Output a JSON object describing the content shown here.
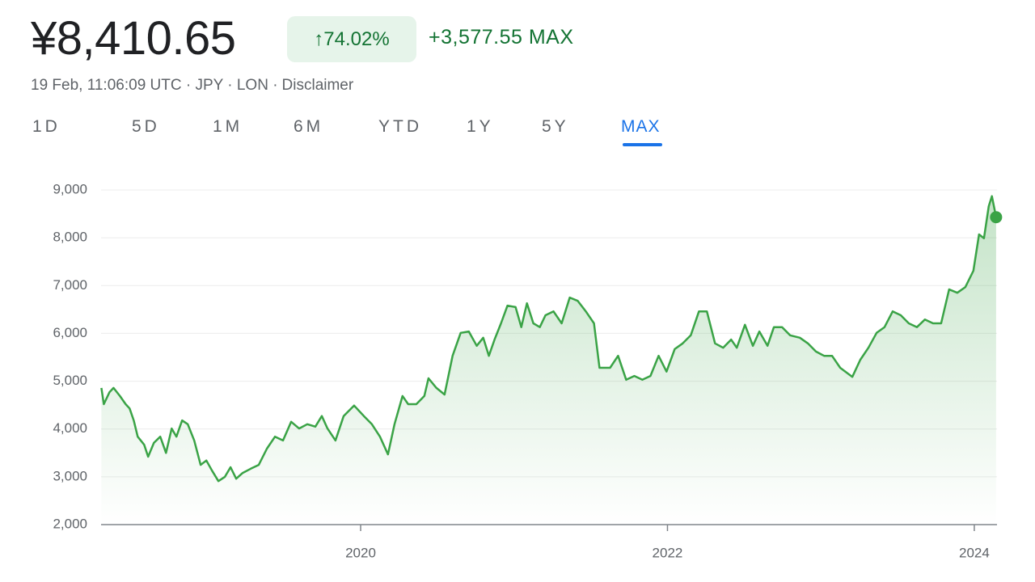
{
  "header": {
    "price": "¥8,410.65",
    "change_pct": "↑74.02%",
    "change_abs": "+3,577.55 MAX",
    "meta": "19 Feb, 11:06:09 UTC · JPY · LON ·",
    "disclaimer": "Disclaimer"
  },
  "tabs": [
    "1D",
    "5D",
    "1M",
    "6M",
    "YTD",
    "1Y",
    "5Y",
    "MAX"
  ],
  "chart_data": {
    "type": "line",
    "color": "#3aa346",
    "area": true,
    "grid": true,
    "x": [
      2018.31,
      2018.326,
      2018.363,
      2018.389,
      2018.431,
      2018.468,
      2018.494,
      2018.521,
      2018.547,
      2018.589,
      2018.615,
      2018.652,
      2018.694,
      2018.731,
      2018.768,
      2018.799,
      2018.836,
      2018.873,
      2018.915,
      2018.957,
      2018.994,
      2019.031,
      2019.073,
      2019.115,
      2019.152,
      2019.189,
      2019.231,
      2019.284,
      2019.336,
      2019.389,
      2019.442,
      2019.494,
      2019.547,
      2019.599,
      2019.652,
      2019.705,
      2019.747,
      2019.784,
      2019.836,
      2019.889,
      2019.957,
      2020.021,
      2020.073,
      2020.126,
      2020.178,
      2020.221,
      2020.273,
      2020.31,
      2020.363,
      2020.415,
      2020.442,
      2020.494,
      2020.547,
      2020.599,
      2020.652,
      2020.705,
      2020.757,
      2020.799,
      2020.836,
      2020.873,
      2020.915,
      2020.957,
      2021.01,
      2021.047,
      2021.084,
      2021.126,
      2021.168,
      2021.205,
      2021.257,
      2021.31,
      2021.363,
      2021.415,
      2021.468,
      2021.521,
      2021.557,
      2021.626,
      2021.678,
      2021.731,
      2021.784,
      2021.836,
      2021.889,
      2021.942,
      2021.994,
      2022.047,
      2022.099,
      2022.152,
      2022.205,
      2022.257,
      2022.31,
      2022.363,
      2022.415,
      2022.452,
      2022.505,
      2022.557,
      2022.599,
      2022.652,
      2022.694,
      2022.747,
      2022.799,
      2022.863,
      2022.915,
      2022.968,
      2023.021,
      2023.073,
      2023.126,
      2023.205,
      2023.257,
      2023.31,
      2023.363,
      2023.415,
      2023.468,
      2023.521,
      2023.573,
      2023.626,
      2023.678,
      2023.731,
      2023.784,
      2023.836,
      2023.889,
      2023.942,
      2023.994,
      2024.031,
      2024.063,
      2024.094,
      2024.115,
      2024.142
    ],
    "values": [
      4860,
      4520,
      4770,
      4860,
      4690,
      4520,
      4430,
      4180,
      3840,
      3670,
      3420,
      3710,
      3840,
      3500,
      4010,
      3840,
      4180,
      4100,
      3760,
      3250,
      3340,
      3130,
      2910,
      3000,
      3200,
      2960,
      3080,
      3170,
      3250,
      3590,
      3840,
      3760,
      4150,
      4010,
      4100,
      4050,
      4270,
      4010,
      3760,
      4270,
      4490,
      4270,
      4100,
      3840,
      3470,
      4100,
      4690,
      4520,
      4520,
      4690,
      5060,
      4860,
      4720,
      5530,
      6010,
      6040,
      5740,
      5910,
      5530,
      5870,
      6210,
      6580,
      6550,
      6130,
      6630,
      6210,
      6130,
      6380,
      6460,
      6210,
      6750,
      6680,
      6460,
      6210,
      5280,
      5280,
      5530,
      5030,
      5110,
      5030,
      5110,
      5530,
      5200,
      5670,
      5790,
      5960,
      6460,
      6460,
      5790,
      5700,
      5870,
      5700,
      6180,
      5740,
      6040,
      5740,
      6130,
      6130,
      5960,
      5910,
      5790,
      5620,
      5530,
      5530,
      5280,
      5090,
      5450,
      5700,
      6010,
      6130,
      6460,
      6380,
      6210,
      6130,
      6290,
      6210,
      6210,
      6920,
      6850,
      6970,
      7310,
      8070,
      7990,
      8660,
      8870,
      8430
    ],
    "xlim": [
      2018.308,
      2024.148
    ],
    "xticks": [
      2020,
      2022,
      2024
    ],
    "ylim": [
      2000,
      9000
    ],
    "yticks": [
      {
        "value": 2000,
        "label": "2,000"
      },
      {
        "value": 3000,
        "label": "3,000"
      },
      {
        "value": 4000,
        "label": "4,000"
      },
      {
        "value": 5000,
        "label": "5,000"
      },
      {
        "value": 6000,
        "label": "6,000"
      },
      {
        "value": 7000,
        "label": "7,000"
      },
      {
        "value": 8000,
        "label": "8,000"
      },
      {
        "value": 9000,
        "label": "9,000"
      }
    ]
  }
}
